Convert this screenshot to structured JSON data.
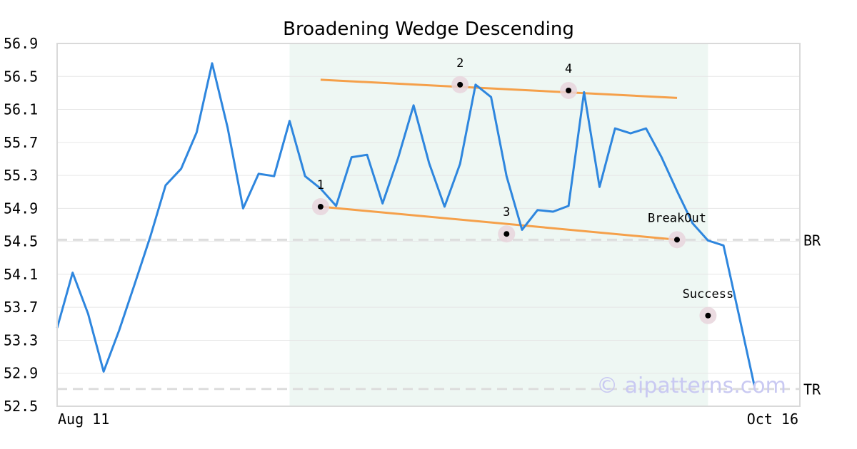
{
  "chart_data": {
    "type": "line",
    "title": "Broadening Wedge Descending",
    "x_tick_labels": [
      "Aug 11",
      "Oct 16"
    ],
    "y_ticks": [
      "56.9",
      "56.5",
      "56.1",
      "55.7",
      "55.3",
      "54.9",
      "54.5",
      "54.1",
      "53.7",
      "53.3",
      "52.9",
      "52.5"
    ],
    "ylim": [
      52.5,
      56.9
    ],
    "grid": true,
    "series": [
      {
        "color": "#2e86de",
        "values": [
          53.45,
          54.12,
          53.62,
          52.92,
          53.42,
          53.98,
          54.55,
          55.18,
          55.38,
          55.82,
          56.66,
          55.88,
          54.9,
          55.32,
          55.29,
          55.96,
          55.29,
          55.14,
          54.93,
          55.52,
          55.55,
          54.96,
          55.51,
          56.15,
          55.45,
          54.92,
          55.44,
          56.4,
          56.25,
          55.29,
          54.64,
          54.88,
          54.86,
          54.93,
          56.31,
          55.16,
          55.87,
          55.81,
          55.87,
          55.52,
          55.11,
          54.72,
          54.51,
          54.45,
          53.6,
          52.74
        ]
      }
    ],
    "shaded_region": {
      "from_index": 15,
      "to_index": 42,
      "color": "#eef7f3"
    },
    "trendlines": [
      {
        "color": "#f5a04a",
        "from": {
          "index": 17,
          "value": 56.46
        },
        "to": {
          "index": 40,
          "value": 56.24
        }
      },
      {
        "color": "#f5a04a",
        "from": {
          "index": 17,
          "value": 54.92
        },
        "to": {
          "index": 40,
          "value": 54.52
        }
      }
    ],
    "markers": [
      {
        "label": "1",
        "index": 17,
        "value": 54.92
      },
      {
        "label": "2",
        "index": 26,
        "value": 56.4
      },
      {
        "label": "3",
        "index": 29,
        "value": 54.59
      },
      {
        "label": "4",
        "index": 33,
        "value": 56.33
      },
      {
        "label": "BreakOut",
        "index": 40,
        "value": 54.52
      },
      {
        "label": "Success",
        "index": 42,
        "value": 53.6
      }
    ],
    "reference_lines": [
      {
        "label": "BR",
        "value": 54.52,
        "color": "#dddddd"
      },
      {
        "label": "TR",
        "value": 52.71,
        "color": "#dddddd"
      }
    ],
    "watermark": "© aipatterns.com"
  }
}
